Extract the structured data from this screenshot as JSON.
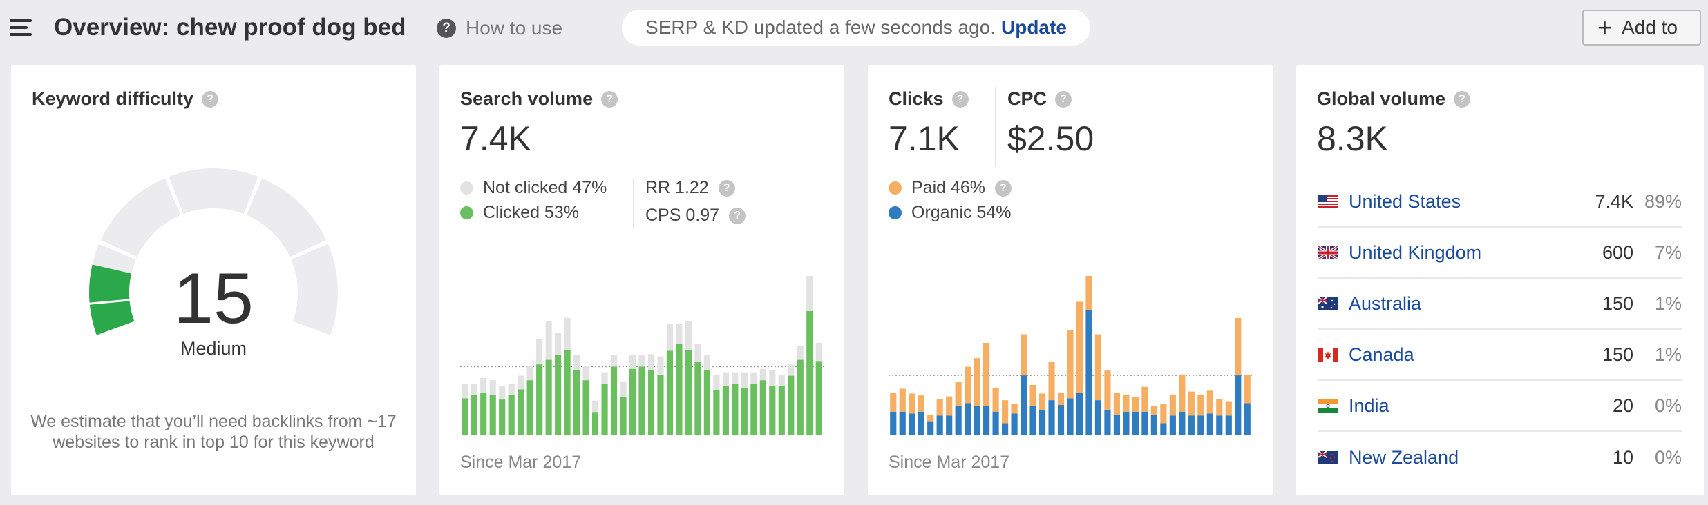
{
  "header": {
    "title": "Overview: chew proof dog bed",
    "how_to_use": "How to use",
    "serp_status": "SERP & KD updated a few seconds ago.",
    "update_link": "Update",
    "add_to": "Add to"
  },
  "keyword_difficulty": {
    "label": "Keyword difficulty",
    "value": "15",
    "level": "Medium",
    "gauge_percent": 15,
    "description": "We estimate that you’ll need backlinks from ~17 websites to rank in top 10 for this keyword"
  },
  "search_volume": {
    "label": "Search volume",
    "value": "7.4K",
    "legend": [
      "Not clicked 47%",
      "Clicked 53%"
    ],
    "rr": "RR 1.22",
    "cps": "CPS 0.97",
    "since": "Since Mar 2017"
  },
  "clicks": {
    "label": "Clicks",
    "value": "7.1K",
    "cpc_label": "CPC",
    "cpc_value": "$2.50",
    "legend": [
      "Paid 46%",
      "Organic 54%"
    ],
    "since": "Since Mar 2017"
  },
  "global_volume": {
    "label": "Global volume",
    "value": "8.3K",
    "countries": [
      {
        "name": "United States",
        "volume": "7.4K",
        "percent": "89%",
        "flag": "us"
      },
      {
        "name": "United Kingdom",
        "volume": "600",
        "percent": "7%",
        "flag": "gb"
      },
      {
        "name": "Australia",
        "volume": "150",
        "percent": "1%",
        "flag": "au"
      },
      {
        "name": "Canada",
        "volume": "150",
        "percent": "1%",
        "flag": "ca"
      },
      {
        "name": "India",
        "volume": "20",
        "percent": "0%",
        "flag": "in"
      },
      {
        "name": "New Zealand",
        "volume": "10",
        "percent": "0%",
        "flag": "nz"
      }
    ]
  },
  "colors": {
    "clicked": "#6abf5e",
    "not_clicked": "#e2e2e2",
    "paid": "#f6ae62",
    "organic": "#2f7cc0",
    "link": "#1a4a9c",
    "gauge_track": "#ececee",
    "gauge_fill": "#2aa84a"
  },
  "chart_data": [
    {
      "type": "bar",
      "name_ref": "search_volume",
      "stacked": true,
      "series": [
        {
          "name": "Clicked",
          "values": [
            32,
            35,
            37,
            35,
            31,
            35,
            40,
            48,
            62,
            66,
            70,
            75,
            57,
            48,
            20,
            45,
            60,
            33,
            58,
            60,
            57,
            53,
            74,
            80,
            75,
            64,
            57,
            39,
            43,
            45,
            41,
            45,
            48,
            43,
            43,
            52,
            66,
            109,
            65
          ]
        },
        {
          "name": "Not clicked",
          "values": [
            13,
            10,
            13,
            13,
            12,
            10,
            12,
            13,
            22,
            34,
            20,
            28,
            13,
            12,
            10,
            10,
            10,
            14,
            12,
            10,
            14,
            16,
            24,
            18,
            25,
            16,
            13,
            14,
            12,
            10,
            14,
            10,
            10,
            14,
            10,
            10,
            12,
            31,
            16
          ]
        }
      ]
    },
    {
      "type": "bar",
      "name_ref": "clicks",
      "stacked": true,
      "series": [
        {
          "name": "Organic",
          "values": [
            24,
            24,
            22,
            24,
            14,
            20,
            20,
            30,
            33,
            30,
            30,
            24,
            12,
            22,
            62,
            30,
            26,
            36,
            31,
            38,
            44,
            130,
            36,
            26,
            21,
            24,
            24,
            24,
            21,
            12,
            20,
            24,
            20,
            20,
            22,
            20,
            20,
            62,
            33
          ]
        },
        {
          "name": "Paid",
          "values": [
            20,
            24,
            21,
            17,
            7,
            17,
            20,
            25,
            38,
            50,
            66,
            25,
            24,
            10,
            43,
            22,
            17,
            40,
            13,
            71,
            95,
            36,
            69,
            41,
            23,
            18,
            15,
            26,
            9,
            20,
            22,
            39,
            25,
            22,
            24,
            17,
            15,
            60,
            29
          ]
        }
      ]
    }
  ]
}
